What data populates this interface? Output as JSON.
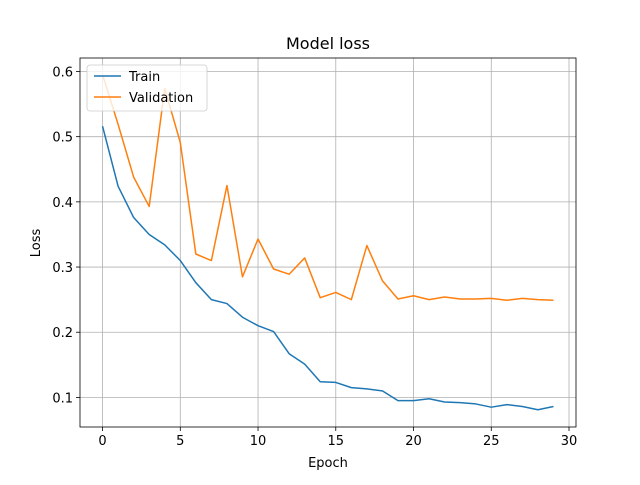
{
  "chart_data": {
    "type": "line",
    "title": "Model loss",
    "xlabel": "Epoch",
    "ylabel": "Loss",
    "xlim": [
      -1.45,
      30.45
    ],
    "ylim": [
      0.0546,
      0.6207
    ],
    "xticks": [
      0,
      5,
      10,
      15,
      20,
      25,
      30
    ],
    "yticks": [
      0.1,
      0.2,
      0.3,
      0.4,
      0.5,
      0.6
    ],
    "grid": true,
    "legend_position": "upper-left",
    "x": [
      0,
      1,
      2,
      3,
      4,
      5,
      6,
      7,
      8,
      9,
      10,
      11,
      12,
      13,
      14,
      15,
      16,
      17,
      18,
      19,
      20,
      21,
      22,
      23,
      24,
      25,
      26,
      27,
      28,
      29
    ],
    "series": [
      {
        "name": "Train",
        "color": "#1f77b4",
        "values": [
          0.516,
          0.424,
          0.376,
          0.35,
          0.334,
          0.31,
          0.276,
          0.25,
          0.244,
          0.223,
          0.21,
          0.201,
          0.167,
          0.151,
          0.124,
          0.123,
          0.115,
          0.113,
          0.11,
          0.095,
          0.095,
          0.098,
          0.093,
          0.092,
          0.09,
          0.085,
          0.089,
          0.086,
          0.081,
          0.086
        ]
      },
      {
        "name": "Validation",
        "color": "#ff7f0e",
        "values": [
          0.595,
          0.519,
          0.438,
          0.393,
          0.574,
          0.491,
          0.32,
          0.31,
          0.425,
          0.285,
          0.343,
          0.297,
          0.289,
          0.314,
          0.253,
          0.261,
          0.25,
          0.333,
          0.279,
          0.251,
          0.256,
          0.25,
          0.254,
          0.251,
          0.251,
          0.252,
          0.249,
          0.252,
          0.25,
          0.249
        ]
      }
    ]
  }
}
